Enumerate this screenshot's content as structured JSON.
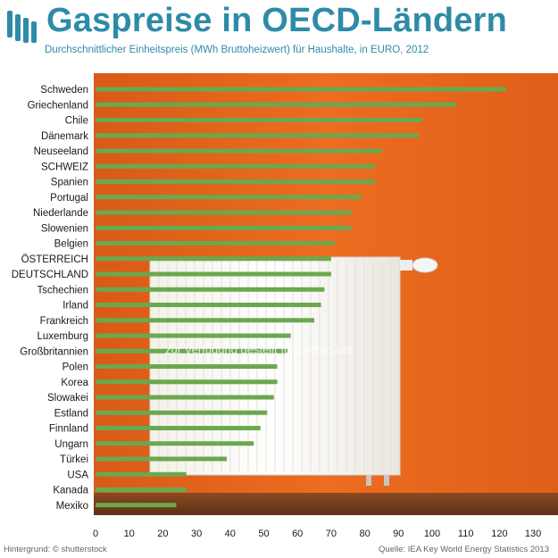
{
  "header": {
    "title": "Gaspreise in OECD-Ländern",
    "subtitle": "Durchschnittlicher Einheitspreis (MWh Bruttoheizwert) für Haushalte, in EURO, 2012",
    "logo_icon": "oecd-logo-icon"
  },
  "footer": {
    "background_credit": "Hintergrund: © shutterstock",
    "source": "Quelle: IEA Key World Energy Statistics 2013"
  },
  "watermark": "zur Verfügung gestellt für photaq.net",
  "colors": {
    "title": "#2e8ba8",
    "bar": "#6ba84f",
    "background": "#e8681e"
  },
  "chart_data": {
    "type": "bar",
    "orientation": "horizontal",
    "title": "Gaspreise in OECD-Ländern",
    "subtitle": "Durchschnittlicher Einheitspreis (MWh Bruttoheizwert) für Haushalte, in EURO, 2012",
    "xlabel": "",
    "ylabel": "",
    "xlim": [
      0,
      130
    ],
    "xticks": [
      0,
      10,
      20,
      30,
      40,
      50,
      60,
      70,
      80,
      90,
      100,
      110,
      120,
      130
    ],
    "grid": false,
    "categories": [
      "Schweden",
      "Griechenland",
      "Chile",
      "Dänemark",
      "Neuseeland",
      "SCHWEIZ",
      "Spanien",
      "Portugal",
      "Niederlande",
      "Slowenien",
      "Belgien",
      "ÖSTERREICH",
      "DEUTSCHLAND",
      "Tschechien",
      "Irland",
      "Frankreich",
      "Luxemburg",
      "Großbritannien",
      "Polen",
      "Korea",
      "Slowakei",
      "Estland",
      "Finnland",
      "Ungarn",
      "Türkei",
      "USA",
      "Kanada",
      "Mexiko"
    ],
    "values": [
      122,
      107,
      97,
      96,
      85,
      83,
      83,
      79,
      76,
      76,
      71,
      70,
      70,
      68,
      67,
      65,
      58,
      57,
      54,
      54,
      53,
      51,
      49,
      47,
      39,
      27,
      27,
      24
    ]
  }
}
